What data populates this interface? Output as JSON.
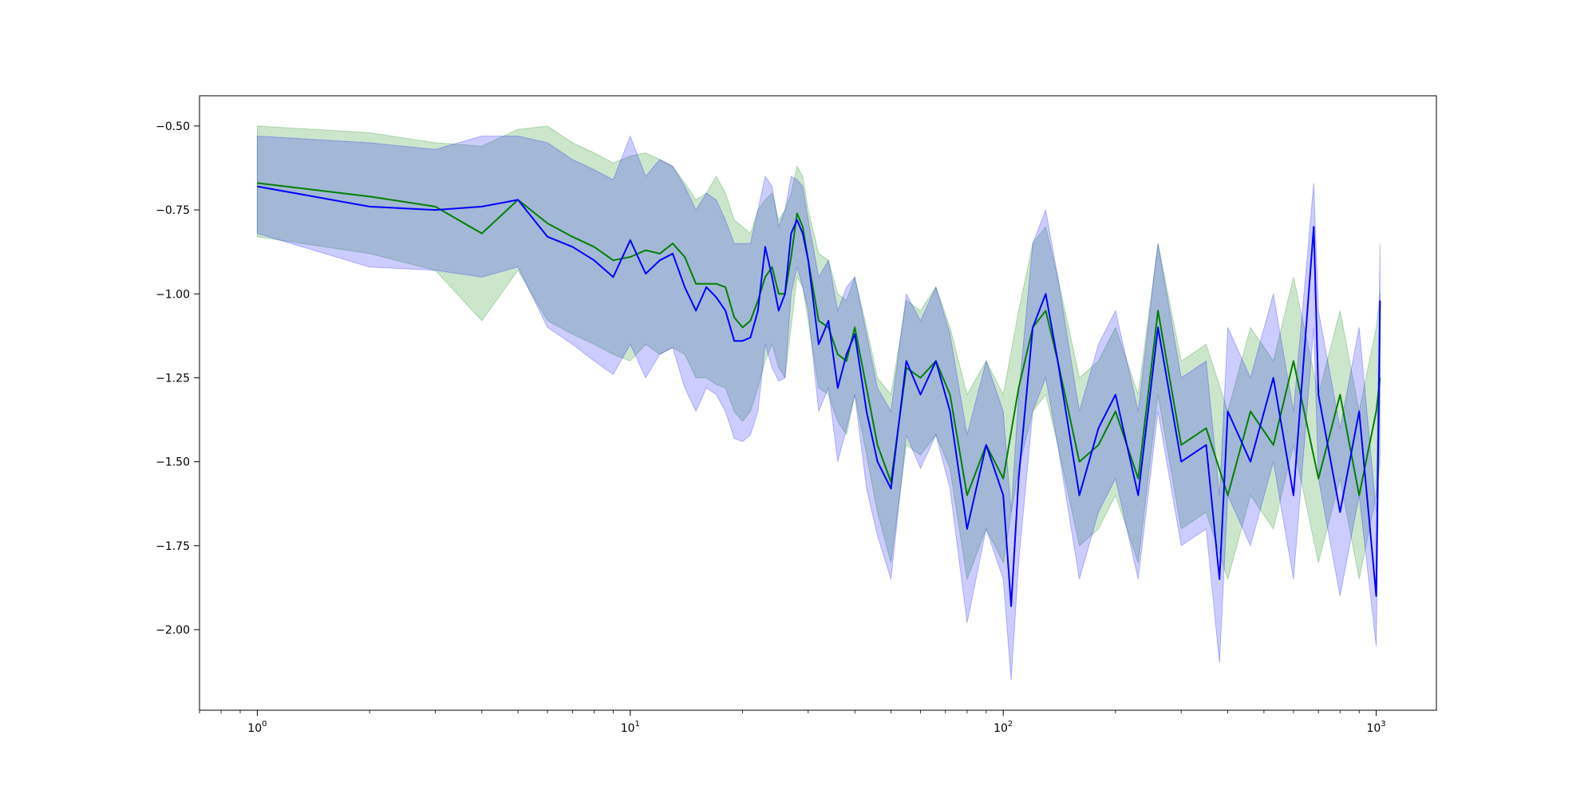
{
  "chart_data": {
    "type": "line",
    "x_scale": "log",
    "xlim": [
      0.7,
      1450
    ],
    "ylim": [
      -2.24,
      -0.41
    ],
    "grid": false,
    "legend": false,
    "title": "",
    "xlabel": "",
    "ylabel": "",
    "xticks": [
      {
        "base": "10",
        "exp": "0",
        "value": 1
      },
      {
        "base": "10",
        "exp": "1",
        "value": 10
      },
      {
        "base": "10",
        "exp": "2",
        "value": 100
      },
      {
        "base": "10",
        "exp": "3",
        "value": 1000
      }
    ],
    "yticks": [
      {
        "label": "−0.50",
        "value": -0.5
      },
      {
        "label": "−0.75",
        "value": -0.75
      },
      {
        "label": "−1.00",
        "value": -1.0
      },
      {
        "label": "−1.25",
        "value": -1.25
      },
      {
        "label": "−1.50",
        "value": -1.5
      },
      {
        "label": "−1.75",
        "value": -1.75
      },
      {
        "label": "−2.00",
        "value": -2.0
      }
    ],
    "series": [
      {
        "color": "#008000",
        "band_color": "#008000",
        "band_opacity": 0.2,
        "x": [
          1,
          2,
          3,
          4,
          5,
          6,
          7,
          8,
          9,
          10,
          11,
          12,
          13,
          14,
          15,
          16,
          17,
          18,
          19,
          20,
          21,
          22,
          23,
          24,
          25,
          26,
          27,
          28,
          29,
          30,
          32,
          34,
          36,
          38,
          40,
          43,
          46,
          50,
          55,
          60,
          66,
          72,
          80,
          90,
          100,
          110,
          120,
          130,
          140,
          160,
          180,
          200,
          230,
          260,
          300,
          350,
          400,
          460,
          530,
          600,
          700,
          800,
          900,
          1000,
          1024
        ],
        "y": [
          -0.67,
          -0.71,
          -0.74,
          -0.82,
          -0.72,
          -0.79,
          -0.83,
          -0.86,
          -0.9,
          -0.89,
          -0.87,
          -0.88,
          -0.85,
          -0.89,
          -0.97,
          -0.97,
          -0.97,
          -0.98,
          -1.07,
          -1.1,
          -1.08,
          -1.02,
          -0.95,
          -0.92,
          -1.0,
          -1.0,
          -0.89,
          -0.76,
          -0.8,
          -0.9,
          -1.08,
          -1.1,
          -1.18,
          -1.2,
          -1.1,
          -1.28,
          -1.45,
          -1.56,
          -1.22,
          -1.25,
          -1.2,
          -1.3,
          -1.6,
          -1.45,
          -1.55,
          -1.28,
          -1.1,
          -1.05,
          -1.2,
          -1.5,
          -1.45,
          -1.35,
          -1.55,
          -1.05,
          -1.45,
          -1.4,
          -1.6,
          -1.35,
          -1.45,
          -1.2,
          -1.55,
          -1.3,
          -1.6,
          -1.35,
          -1.25
        ],
        "upper": [
          -0.5,
          -0.52,
          -0.55,
          -0.56,
          -0.51,
          -0.5,
          -0.55,
          -0.58,
          -0.61,
          -0.59,
          -0.58,
          -0.6,
          -0.62,
          -0.67,
          -0.72,
          -0.7,
          -0.65,
          -0.7,
          -0.78,
          -0.8,
          -0.82,
          -0.75,
          -0.72,
          -0.7,
          -0.78,
          -0.75,
          -0.7,
          -0.62,
          -0.65,
          -0.75,
          -0.88,
          -0.9,
          -1.0,
          -1.02,
          -0.95,
          -1.1,
          -1.25,
          -1.3,
          -1.02,
          -1.05,
          -0.98,
          -1.1,
          -1.3,
          -1.2,
          -1.3,
          -1.05,
          -0.85,
          -0.8,
          -0.95,
          -1.25,
          -1.2,
          -1.1,
          -1.3,
          -0.85,
          -1.2,
          -1.15,
          -1.35,
          -1.1,
          -1.2,
          -0.95,
          -1.3,
          -1.05,
          -1.35,
          -1.1,
          -1.0
        ],
        "lower": [
          -0.83,
          -0.88,
          -0.93,
          -1.08,
          -0.93,
          -1.08,
          -1.12,
          -1.15,
          -1.18,
          -1.2,
          -1.15,
          -1.18,
          -1.16,
          -1.18,
          -1.25,
          -1.25,
          -1.27,
          -1.28,
          -1.35,
          -1.38,
          -1.35,
          -1.28,
          -1.2,
          -1.15,
          -1.22,
          -1.25,
          -1.1,
          -0.95,
          -0.98,
          -1.08,
          -1.28,
          -1.3,
          -1.38,
          -1.42,
          -1.3,
          -1.48,
          -1.65,
          -1.8,
          -1.45,
          -1.48,
          -1.42,
          -1.52,
          -1.85,
          -1.7,
          -1.8,
          -1.52,
          -1.35,
          -1.3,
          -1.45,
          -1.75,
          -1.7,
          -1.6,
          -1.8,
          -1.3,
          -1.7,
          -1.65,
          -1.85,
          -1.6,
          -1.7,
          -1.45,
          -1.8,
          -1.55,
          -1.85,
          -1.6,
          -1.5
        ]
      },
      {
        "color": "#0000ff",
        "band_color": "#0000ff",
        "band_opacity": 0.2,
        "x": [
          1,
          2,
          3,
          4,
          5,
          6,
          7,
          8,
          9,
          10,
          11,
          12,
          13,
          14,
          15,
          16,
          17,
          18,
          19,
          20,
          21,
          22,
          23,
          24,
          25,
          26,
          27,
          28,
          29,
          30,
          32,
          34,
          36,
          38,
          40,
          43,
          46,
          50,
          55,
          60,
          66,
          72,
          80,
          90,
          100,
          105,
          110,
          120,
          130,
          140,
          160,
          180,
          200,
          230,
          260,
          300,
          350,
          380,
          400,
          460,
          530,
          600,
          680,
          700,
          800,
          900,
          1000,
          1024
        ],
        "y": [
          -0.68,
          -0.74,
          -0.75,
          -0.74,
          -0.72,
          -0.83,
          -0.86,
          -0.9,
          -0.95,
          -0.84,
          -0.94,
          -0.9,
          -0.88,
          -0.98,
          -1.05,
          -0.98,
          -1.01,
          -1.05,
          -1.14,
          -1.14,
          -1.13,
          -1.05,
          -0.86,
          -0.95,
          -1.05,
          -1.0,
          -0.82,
          -0.78,
          -0.82,
          -0.9,
          -1.15,
          -1.08,
          -1.28,
          -1.18,
          -1.12,
          -1.35,
          -1.5,
          -1.58,
          -1.2,
          -1.3,
          -1.2,
          -1.35,
          -1.7,
          -1.45,
          -1.6,
          -1.93,
          -1.55,
          -1.1,
          -1.0,
          -1.2,
          -1.6,
          -1.4,
          -1.3,
          -1.6,
          -1.1,
          -1.5,
          -1.45,
          -1.85,
          -1.35,
          -1.5,
          -1.25,
          -1.6,
          -0.8,
          -1.3,
          -1.65,
          -1.35,
          -1.9,
          -1.02
        ],
        "upper": [
          -0.53,
          -0.55,
          -0.57,
          -0.53,
          -0.53,
          -0.55,
          -0.6,
          -0.63,
          -0.66,
          -0.53,
          -0.65,
          -0.6,
          -0.62,
          -0.68,
          -0.75,
          -0.7,
          -0.72,
          -0.78,
          -0.85,
          -0.85,
          -0.85,
          -0.75,
          -0.65,
          -0.68,
          -0.8,
          -0.75,
          -0.65,
          -0.66,
          -0.68,
          -0.78,
          -0.95,
          -0.9,
          -1.05,
          -0.98,
          -0.95,
          -1.12,
          -1.28,
          -1.35,
          -1.0,
          -1.08,
          -0.98,
          -1.12,
          -1.42,
          -1.2,
          -1.35,
          -1.65,
          -1.3,
          -0.85,
          -0.75,
          -0.95,
          -1.35,
          -1.15,
          -1.05,
          -1.35,
          -0.85,
          -1.25,
          -1.2,
          -1.6,
          -1.1,
          -1.25,
          -1.0,
          -1.35,
          -0.67,
          -1.05,
          -1.4,
          -1.1,
          -1.65,
          -0.85
        ],
        "lower": [
          -0.82,
          -0.92,
          -0.93,
          -0.95,
          -0.92,
          -1.1,
          -1.15,
          -1.2,
          -1.24,
          -1.15,
          -1.25,
          -1.18,
          -1.16,
          -1.28,
          -1.35,
          -1.28,
          -1.3,
          -1.35,
          -1.43,
          -1.44,
          -1.42,
          -1.35,
          -1.15,
          -1.22,
          -1.26,
          -1.25,
          -1.0,
          -0.92,
          -0.98,
          -1.05,
          -1.35,
          -1.28,
          -1.5,
          -1.4,
          -1.3,
          -1.58,
          -1.72,
          -1.85,
          -1.42,
          -1.52,
          -1.42,
          -1.58,
          -1.98,
          -1.7,
          -1.85,
          -2.15,
          -1.8,
          -1.35,
          -1.25,
          -1.45,
          -1.85,
          -1.65,
          -1.55,
          -1.85,
          -1.35,
          -1.75,
          -1.7,
          -2.1,
          -1.6,
          -1.75,
          -1.5,
          -1.85,
          -1.1,
          -1.55,
          -1.9,
          -1.6,
          -2.05,
          -1.25
        ]
      }
    ]
  }
}
